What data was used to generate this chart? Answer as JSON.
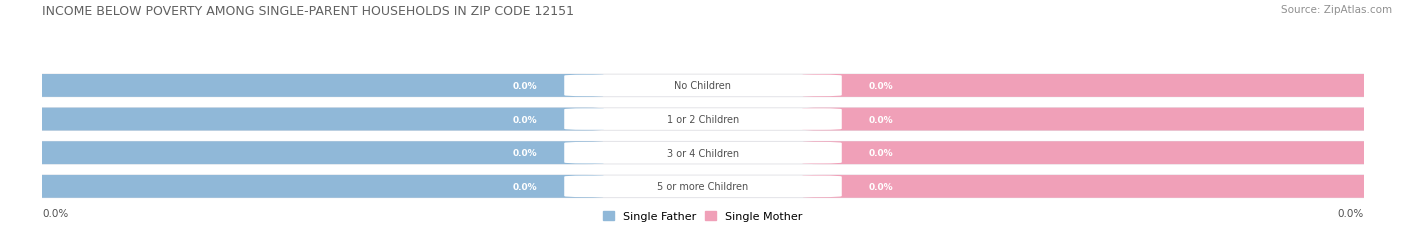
{
  "title": "INCOME BELOW POVERTY AMONG SINGLE-PARENT HOUSEHOLDS IN ZIP CODE 12151",
  "source": "Source: ZipAtlas.com",
  "categories": [
    "No Children",
    "1 or 2 Children",
    "3 or 4 Children",
    "5 or more Children"
  ],
  "single_father_values": [
    0.0,
    0.0,
    0.0,
    0.0
  ],
  "single_mother_values": [
    0.0,
    0.0,
    0.0,
    0.0
  ],
  "father_color": "#90b8d8",
  "mother_color": "#f0a0b8",
  "bar_bg_color": "#e4e4e8",
  "label_color": "#505050",
  "title_color": "#606060",
  "source_color": "#909090",
  "axis_label_left": "0.0%",
  "axis_label_right": "0.0%",
  "legend_father": "Single Father",
  "legend_mother": "Single Mother",
  "figsize": [
    14.06,
    2.32
  ],
  "dpi": 100
}
